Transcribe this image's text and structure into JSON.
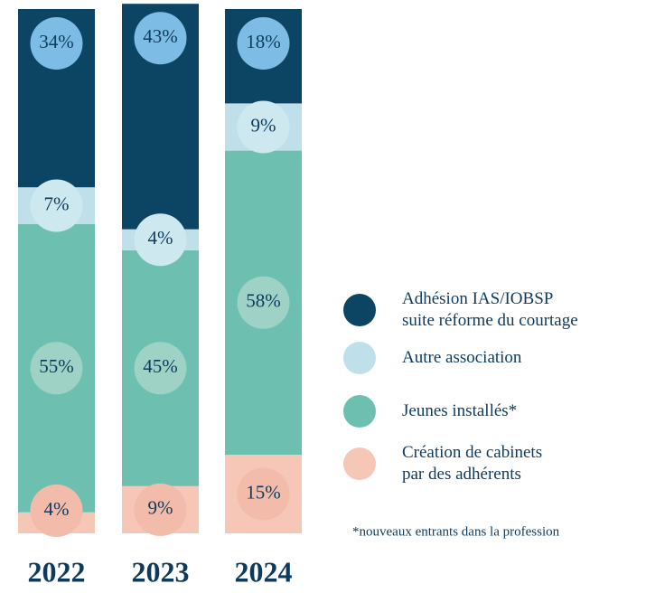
{
  "chart_data": {
    "type": "stacked_bar",
    "categories": [
      "2022",
      "2023",
      "2024"
    ],
    "ylim": [
      0,
      100
    ],
    "series": [
      {
        "name": "Création de cabinets\npar des adhérents",
        "color": "#f6c6b6",
        "label_color": "#f3bba9",
        "values": [
          4,
          9,
          15
        ],
        "value_labels": [
          "4%",
          "9%",
          "15%"
        ]
      },
      {
        "name": "Jeunes installés*",
        "color": "#6dc0b0",
        "label_color": "#9dd2c5",
        "values": [
          55,
          45,
          58
        ],
        "value_labels": [
          "55%",
          "45%",
          "58%"
        ]
      },
      {
        "name": "Autre association",
        "color": "#bfe0ea",
        "label_color": "#cde8ef",
        "values": [
          7,
          4,
          9
        ],
        "value_labels": [
          "7%",
          "4%",
          "9%"
        ]
      },
      {
        "name": "Adhésion IAS/IOBSP\nsuite réforme du courtage",
        "color": "#0c4463",
        "label_color": "#7dbde5",
        "values": [
          34,
          43,
          18
        ],
        "value_labels": [
          "34%",
          "43%",
          "18%"
        ]
      }
    ],
    "footnote": "*nouveaux entrants dans la profession"
  }
}
